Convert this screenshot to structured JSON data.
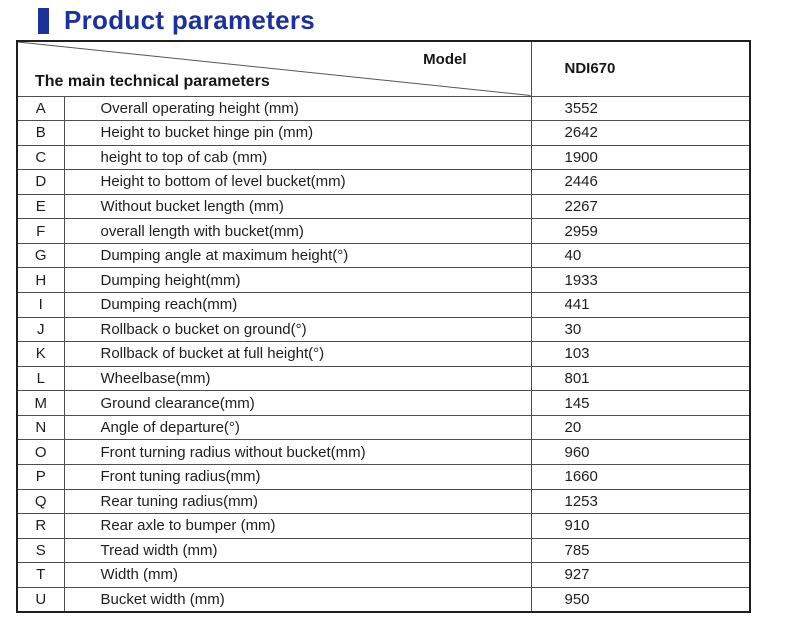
{
  "page": {
    "title": "Product parameters"
  },
  "colors": {
    "accent_blue": "#1d3296",
    "border_dark": "#1f1f1f",
    "border_inner": "#4d4d4d",
    "text": "#1e1e1e"
  },
  "table": {
    "header": {
      "corner_top_label": "Model",
      "corner_bottom_label": "The main technical parameters",
      "model_name": "NDI670"
    },
    "rows": [
      {
        "letter": "A",
        "parameter": "Overall operating height (mm)",
        "value": "3552"
      },
      {
        "letter": "B",
        "parameter": "Height to bucket hinge pin (mm)",
        "value": "2642"
      },
      {
        "letter": "C",
        "parameter": "height to top of cab (mm)",
        "value": "1900"
      },
      {
        "letter": "D",
        "parameter": "Height to bottom of level bucket(mm)",
        "value": "2446"
      },
      {
        "letter": "E",
        "parameter": "Without bucket length  (mm)",
        "value": "2267"
      },
      {
        "letter": "F",
        "parameter": "overall length with bucket(mm)",
        "value": "2959"
      },
      {
        "letter": "G",
        "parameter": "Dumping angle at maximum height(°)",
        "value": "40"
      },
      {
        "letter": "H",
        "parameter": "Dumping height(mm)",
        "value": "1933"
      },
      {
        "letter": "I",
        "parameter": "Dumping reach(mm)",
        "value": "441"
      },
      {
        "letter": "J",
        "parameter": "Rollback o bucket on ground(°)",
        "value": "30"
      },
      {
        "letter": "K",
        "parameter": "Rollback of bucket at full height(°)",
        "value": "103"
      },
      {
        "letter": "L",
        "parameter": "Wheelbase(mm)",
        "value": "801"
      },
      {
        "letter": "M",
        "parameter": "Ground clearance(mm)",
        "value": "145"
      },
      {
        "letter": "N",
        "parameter": "Angle of departure(°)",
        "value": "20"
      },
      {
        "letter": "O",
        "parameter": "Front turning radius without bucket(mm)",
        "value": "960"
      },
      {
        "letter": "P",
        "parameter": "Front tuning radius(mm)",
        "value": "1660"
      },
      {
        "letter": "Q",
        "parameter": "Rear tuning radius(mm)",
        "value": "1253"
      },
      {
        "letter": "R",
        "parameter": "Rear axle to bumper (mm)",
        "value": "910"
      },
      {
        "letter": "S",
        "parameter": "Tread width (mm)",
        "value": "785"
      },
      {
        "letter": "T",
        "parameter": "Width (mm)",
        "value": "927"
      },
      {
        "letter": "U",
        "parameter": "Bucket width (mm)",
        "value": "950"
      }
    ]
  }
}
